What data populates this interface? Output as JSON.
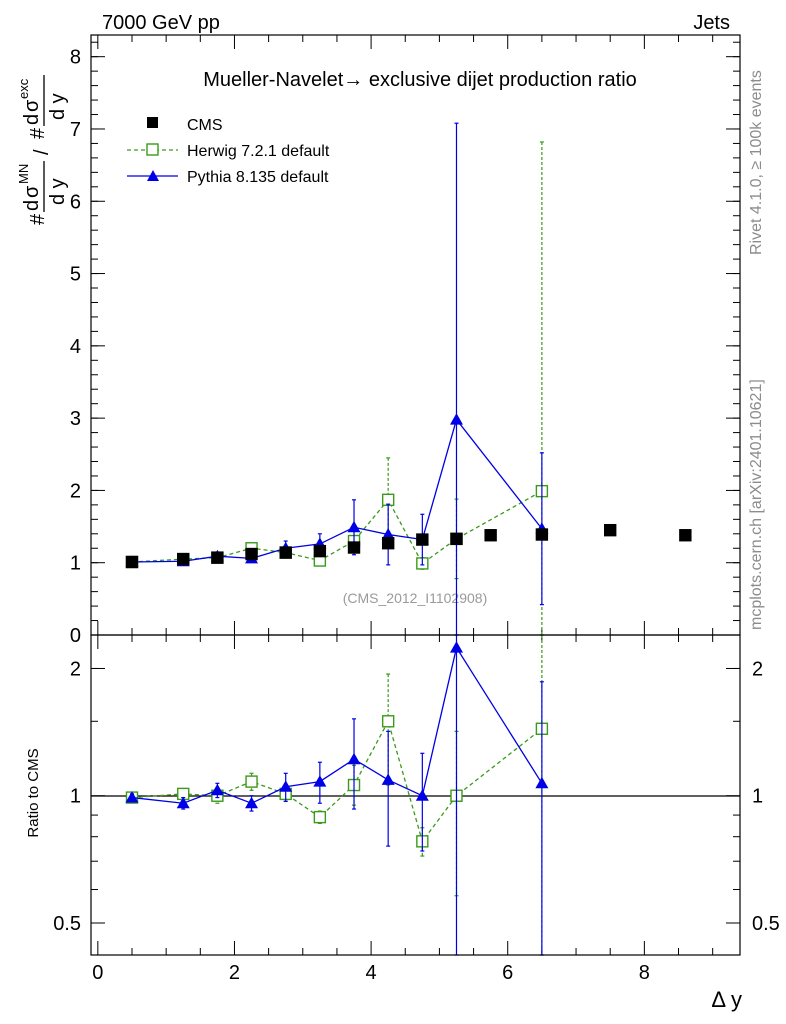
{
  "header": {
    "left": "7000 GeV pp",
    "right": "Jets"
  },
  "side_labels": {
    "rivet": "Rivet 4.1.0, ≥ 100k events",
    "mcplots": "mcplots.cern.ch [arXiv:2401.10621]"
  },
  "chart_data": [
    {
      "type": "scatter",
      "panel": "main",
      "title": "Mueller-Navelet→ exclusive dijet production ratio",
      "ylabel_parts": {
        "hash": "#",
        "d": "d",
        "sigma": "σ",
        "mn": "MN",
        "exc": "exc",
        "slash": "/",
        "dy": "d y"
      },
      "xlim": [
        -0.1,
        9.4
      ],
      "ylim": [
        0,
        8.3
      ],
      "yticks": [
        0,
        1,
        2,
        3,
        4,
        5,
        6,
        7,
        8
      ],
      "watermark": "(CMS_2012_I1102908)",
      "legend": [
        "CMS",
        "Herwig 7.2.1 default",
        "Pythia 8.135 default"
      ],
      "series": [
        {
          "name": "CMS",
          "color": "#000000",
          "x": [
            0.5,
            1.25,
            1.75,
            2.25,
            2.75,
            3.25,
            3.75,
            4.25,
            4.75,
            5.25,
            5.75,
            6.5,
            7.5,
            8.6
          ],
          "y": [
            1.01,
            1.05,
            1.07,
            1.12,
            1.14,
            1.16,
            1.21,
            1.27,
            1.32,
            1.33,
            1.38,
            1.39,
            1.45,
            1.38
          ]
        },
        {
          "name": "Herwig 7.2.1 default",
          "color": "#3a9a1a",
          "x": [
            0.5,
            1.25,
            1.75,
            2.25,
            2.75,
            3.25,
            3.75,
            4.25,
            4.75,
            5.25,
            6.5
          ],
          "y": [
            1.01,
            1.05,
            1.07,
            1.2,
            1.14,
            1.03,
            1.3,
            1.87,
            0.99,
            1.33,
            1.99
          ],
          "err": [
            0.02,
            0.03,
            0.05,
            0.06,
            0.05,
            0.04,
            0.15,
            0.58,
            0.08,
            0.55,
            4.83
          ]
        },
        {
          "name": "Pythia 8.135 default",
          "color": "#0000e6",
          "x": [
            0.5,
            1.25,
            1.75,
            2.25,
            2.75,
            3.25,
            3.75,
            4.25,
            4.75,
            5.25,
            6.5
          ],
          "y": [
            1.01,
            1.02,
            1.09,
            1.06,
            1.2,
            1.26,
            1.49,
            1.39,
            1.32,
            2.98,
            1.47
          ],
          "err": [
            0.02,
            0.03,
            0.05,
            0.05,
            0.1,
            0.14,
            0.38,
            0.42,
            0.35,
            4.1,
            1.05
          ]
        }
      ]
    },
    {
      "type": "scatter",
      "panel": "ratio",
      "ylabel": "Ratio to CMS",
      "xlabel": "Δ y",
      "xlim": [
        -0.1,
        9.4
      ],
      "ylim": [
        0.42,
        2.4
      ],
      "ytick_labels": [
        {
          "value": 0.5,
          "label": "0.5"
        },
        {
          "value": 1,
          "label": "1"
        },
        {
          "value": 2,
          "label": "2"
        }
      ],
      "xticks": [
        0,
        2,
        4,
        6,
        8
      ],
      "series": [
        {
          "name": "Herwig 7.2.1 default",
          "color": "#3a9a1a",
          "x": [
            0.5,
            1.25,
            1.75,
            2.25,
            2.75,
            3.25,
            3.75,
            4.25,
            4.75,
            5.25,
            6.5
          ],
          "y": [
            0.99,
            1.01,
            1.0,
            1.08,
            1.01,
            0.89,
            1.06,
            1.5,
            0.78,
            1.0,
            1.44
          ],
          "lo": [
            0.97,
            0.98,
            0.96,
            1.03,
            0.97,
            0.86,
            0.95,
            1.06,
            0.72,
            0.58,
            0.37
          ],
          "hi": [
            1.01,
            1.04,
            1.04,
            1.13,
            1.05,
            0.92,
            1.18,
            1.94,
            0.84,
            1.42,
            5.0
          ]
        },
        {
          "name": "Pythia 8.135 default",
          "color": "#0000e6",
          "x": [
            0.5,
            1.25,
            1.75,
            2.25,
            2.75,
            3.25,
            3.75,
            4.25,
            4.75,
            5.25,
            6.5
          ],
          "y": [
            0.99,
            0.96,
            1.03,
            0.96,
            1.05,
            1.08,
            1.22,
            1.09,
            1.0,
            2.24,
            1.07
          ],
          "lo": [
            0.97,
            0.93,
            0.99,
            0.92,
            0.97,
            0.96,
            0.93,
            0.76,
            0.74,
            0.37,
            0.37
          ],
          "hi": [
            1.01,
            0.99,
            1.07,
            1.0,
            1.13,
            1.2,
            1.52,
            1.42,
            1.26,
            5.0,
            1.86
          ]
        }
      ]
    }
  ]
}
